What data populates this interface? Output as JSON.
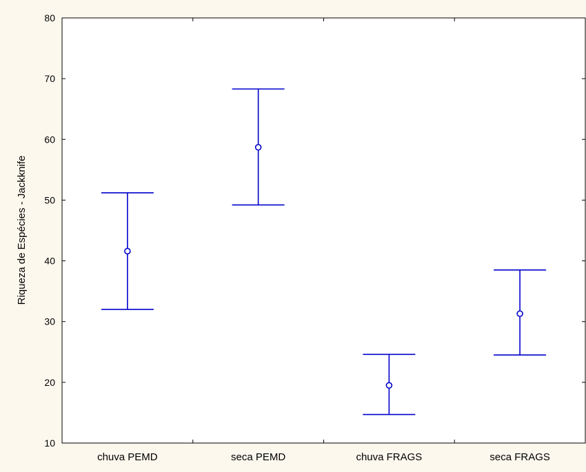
{
  "chart_data": {
    "type": "error-bar",
    "title": "",
    "xlabel": "",
    "ylabel": "Riqueza de Espécies - Jackknife",
    "categories": [
      "chuva PEMD",
      "seca PEMD",
      "chuva FRAGS",
      "seca FRAGS"
    ],
    "series": [
      {
        "mean": [
          41.6,
          58.7,
          19.5,
          31.3
        ],
        "lower": [
          32.0,
          49.2,
          14.7,
          24.5
        ],
        "upper": [
          51.2,
          68.3,
          24.6,
          38.5
        ]
      }
    ],
    "ylim": [
      10,
      80
    ],
    "yticks": [
      10,
      20,
      30,
      40,
      50,
      60,
      70,
      80
    ],
    "grid": false,
    "legend": "none",
    "colors": {
      "series": "#0000cc",
      "axes": "#000000",
      "plot_background": "#ffffff",
      "page_background": "#fdf8ee"
    }
  }
}
